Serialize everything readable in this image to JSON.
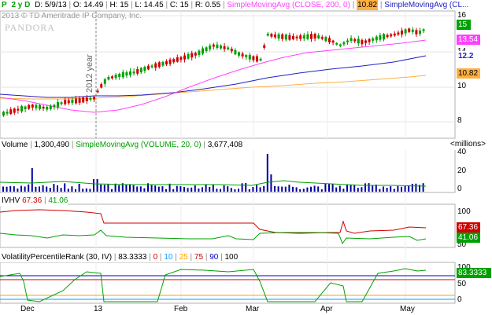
{
  "header": {
    "symbol": "P",
    "period": "2 y D",
    "date_label": "D: 5/9/13",
    "open_label": "O: 14.49",
    "high_label": "H: 15",
    "low_label": "L: 14.45",
    "close_label": "C: 15",
    "change_label": "R: 0.55",
    "sma_label": "SimpleMovingAvg (CLOSE, 200, 0)",
    "sma_value": "10.82",
    "sma2_label": "SimpleMovingAvg (CL..."
  },
  "price_panel": {
    "copyright": "2013 © TD Ameritrade IP Company, Inc.",
    "watermark": "PANDORA",
    "year_marker": "2012 year",
    "axis_ticks": [
      "16",
      "14",
      "12",
      "10",
      "8"
    ],
    "last_price": "15",
    "sma50_value": "13.54",
    "sma100_value": "12.2",
    "sma200_value": "10.82",
    "colors": {
      "up": "#00a000",
      "down": "#d00000",
      "sma50": "#ff40ff",
      "sma100": "#2020c0",
      "sma200": "#ffb040",
      "grid": "#e0e0e0"
    }
  },
  "volume_panel": {
    "label": "Volume",
    "value": "1,300,490",
    "sma_label": "SimpleMovingAvg (VOLUME, 20, 0)",
    "sma_value": "3,677,408",
    "units": "<millions>",
    "axis_ticks": [
      "40",
      "20",
      "0"
    ]
  },
  "ivhv_panel": {
    "label": "IVHV",
    "iv_value": "67.36",
    "hv_value": "41.06",
    "axis_ticks": [
      "100",
      "50"
    ],
    "iv_badge": "67.36",
    "hv_badge": "41.06"
  },
  "vpr_panel": {
    "label": "VolatilityPercentileRank (30, IV)",
    "value": "83.3333",
    "levels": [
      "0",
      "10",
      "25",
      "75",
      "90",
      "100"
    ],
    "level_colors": [
      "#d00000",
      "#00a0ff",
      "#ffa000",
      "#d00000",
      "#0000c0",
      "#000000"
    ],
    "axis_ticks": [
      "100",
      "50",
      "0"
    ],
    "badge": "83.3333"
  },
  "x_axis": {
    "labels": [
      "Dec",
      "13",
      "Feb",
      "Mar",
      "Apr",
      "May"
    ]
  }
}
